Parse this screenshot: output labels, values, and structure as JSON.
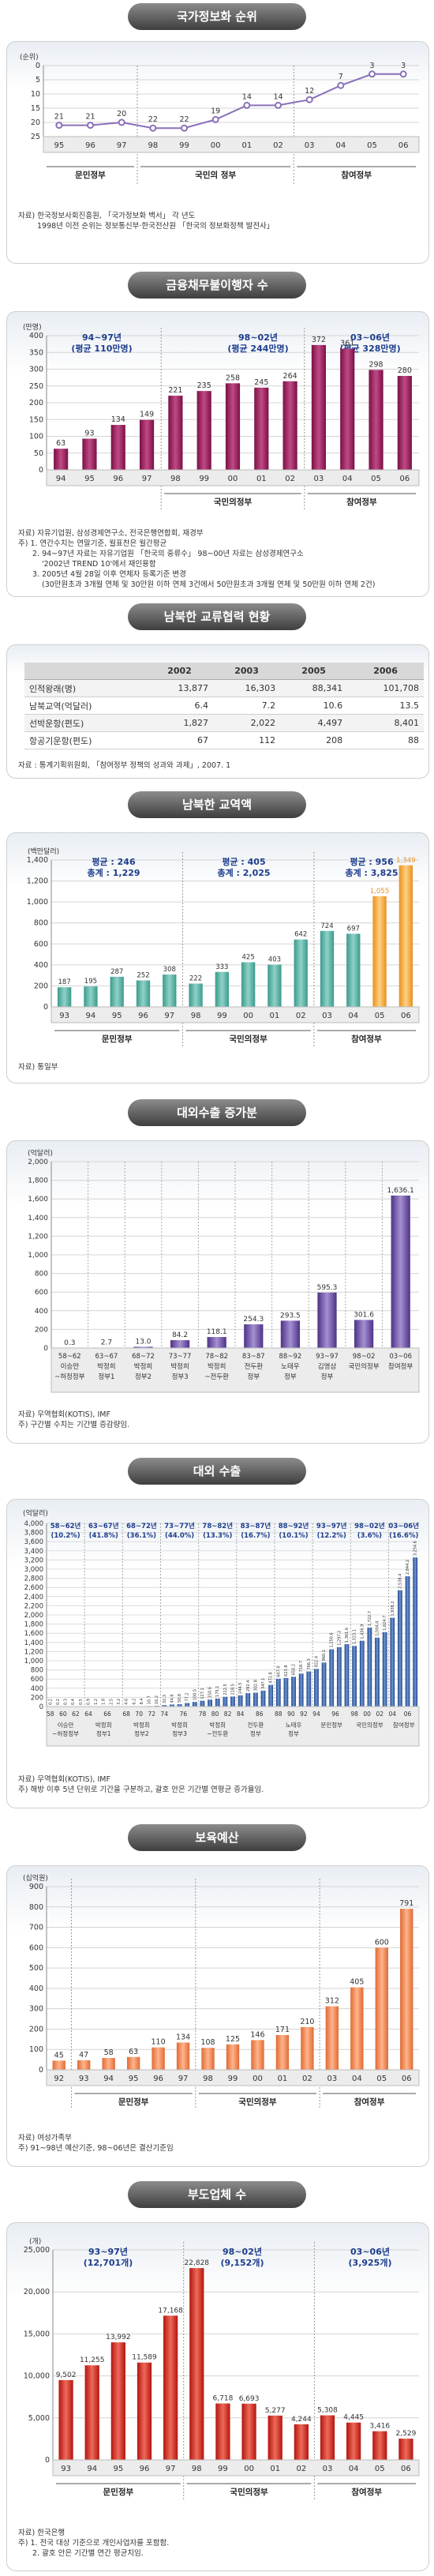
{
  "banners": {
    "s1": "국가정보화 순위",
    "s2": "금융채무불이행자 수",
    "s3": "남북한 교류협력 현황",
    "s4": "남북한 교역액",
    "s5": "대외수출 증가분",
    "s6": "대외 수출",
    "s7": "보육예산",
    "s8": "부도업체 수"
  },
  "colors": {
    "banner": "#555555",
    "panel_border": "#cfcfcf",
    "bar_purple": "#9b1a5c",
    "bar_teal": "#5bb5a8",
    "bar_orange": "#f0a040",
    "bar_violet": "#7a5aa8",
    "bar_blue": "#2c5aa0",
    "bar_salmon": "#f08a58",
    "bar_red": "#d02820",
    "line_violet": "#8a70b8"
  },
  "sources": {
    "s1": [
      "자료) 한국정보사회진흥원, 「국가정보화 백서」 각 년도",
      "1998년 이전 순위는 정보통신부·한국전산원 「한국의 정보화정책 발전사」"
    ],
    "s2": [
      "자료) 자유기업원, 삼성경제연구소, 전국은행연합회, 재경부",
      "주) 1. 연간수치는 연말기준, 월표찬은 월간평균",
      "2. 94~97년 자료는 자유기업원 「한국의 중류수」 98~00년 자료는 삼성경제연구소",
      "'2002년 TREND 10'에서 재인용함",
      "3. 2005년 4월 28일 이후 연체자 등록기준 변경",
      "(30만원초과 3개월 연체 및 30만원 이하 연체 3건에서 50만원초과 3개월 연체 및 50만원 이하 연체 2건)"
    ],
    "s3": [
      "자료 : 통계기획위원회, 「참여정부 정책의 성과와 과제」, 2007. 1"
    ],
    "s4": [
      "자료) 통일부"
    ],
    "s5": [
      "자료) 무역협회(KOTIS), IMF",
      "주) 구간별 수치는 기간별 증감량임."
    ],
    "s6": [
      "자료) 무역협회(KOTIS), IMF",
      "주) 해방 이후 5년 단위로 기간을 구분하고, 괄호 안은 기간별 연평균 증가율임."
    ],
    "s7": [
      "자료) 여성가족부",
      "주) 91~98년 예산기준, 98~06년은 결산기준임"
    ],
    "s8": [
      "자료) 한국은행",
      "주) 1. 전국 대상 기준으로 개인사업자를 포함함.",
      "2. 괄호 안은 기간별 연간 평균치임."
    ]
  },
  "table": {
    "header": [
      "",
      "2002",
      "2003",
      "2005",
      "2006"
    ],
    "rows": [
      [
        "인적왕래(명)",
        "13,877",
        "16,303",
        "88,341",
        "101,708"
      ],
      [
        "남북교역(억달러)",
        "6.4",
        "7.2",
        "10.6",
        "13.5"
      ],
      [
        "선박운항(편도)",
        "1,827",
        "2,022",
        "4,497",
        "8,401"
      ],
      [
        "항공기운항(편도)",
        "67",
        "112",
        "208",
        "88"
      ]
    ]
  },
  "chart_data": [
    {
      "type": "line",
      "title": "국가정보화 순위",
      "ylabel": "(순위)",
      "ylim": [
        25,
        0
      ],
      "yticks": [
        0,
        5,
        10,
        15,
        20,
        25
      ],
      "categories": [
        "95",
        "96",
        "97",
        "98",
        "99",
        "00",
        "01",
        "02",
        "03",
        "04",
        "05",
        "06"
      ],
      "values": [
        21,
        21,
        20,
        22,
        22,
        19,
        14,
        14,
        12,
        7,
        3,
        3
      ],
      "groups": [
        {
          "label": "문민정부",
          "span": [
            0,
            2
          ]
        },
        {
          "label": "국민의 정부",
          "span": [
            3,
            7
          ]
        },
        {
          "label": "참여정부",
          "span": [
            8,
            11
          ]
        }
      ],
      "grid": true
    },
    {
      "type": "bar",
      "title": "금융채무불이행자 수",
      "ylabel": "(만명)",
      "ylim": [
        0,
        400
      ],
      "yticks": [
        0,
        50,
        100,
        150,
        200,
        250,
        300,
        350,
        400
      ],
      "categories": [
        "94",
        "95",
        "96",
        "97",
        "98",
        "99",
        "00",
        "01",
        "02",
        "03",
        "04",
        "05",
        "06"
      ],
      "values": [
        63,
        93,
        134,
        149,
        221,
        235,
        258,
        245,
        264,
        372,
        361,
        298,
        280
      ],
      "groups": [
        {
          "label": "국민의정부",
          "span": [
            4,
            8
          ]
        },
        {
          "label": "참여정부",
          "span": [
            9,
            12
          ]
        }
      ],
      "annotations": [
        {
          "text": "94~97년",
          "sub": "(평균 110만명)"
        },
        {
          "text": "98~02년",
          "sub": "(평균 244만명)"
        },
        {
          "text": "03~06년",
          "sub": "(평균 328만명)"
        }
      ],
      "grid": true
    },
    {
      "type": "bar",
      "title": "남북한 교역액",
      "ylabel": "(백만달러)",
      "ylim": [
        0,
        1400
      ],
      "yticks": [
        0,
        200,
        400,
        600,
        800,
        1000,
        1200,
        1400
      ],
      "categories": [
        "93",
        "94",
        "95",
        "96",
        "97",
        "98",
        "99",
        "00",
        "01",
        "02",
        "03",
        "04",
        "05",
        "06"
      ],
      "values": [
        187,
        195,
        287,
        252,
        308,
        222,
        333,
        425,
        403,
        642,
        724,
        697,
        1055,
        1349
      ],
      "groups": [
        {
          "label": "문민정부",
          "span": [
            0,
            4
          ]
        },
        {
          "label": "국민의정부",
          "span": [
            5,
            9
          ]
        },
        {
          "label": "참여정부",
          "span": [
            10,
            13
          ]
        }
      ],
      "annotations": [
        {
          "text": "평균 : 246",
          "sub": "총계 : 1,229"
        },
        {
          "text": "평균 : 405",
          "sub": "총계 : 2,025"
        },
        {
          "text": "평균 : 956",
          "sub": "총계 : 3,825"
        }
      ],
      "grid": true
    },
    {
      "type": "bar",
      "title": "대외수출 증가분",
      "ylabel": "(억달러)",
      "ylim": [
        0,
        2000
      ],
      "yticks": [
        0,
        200,
        400,
        600,
        800,
        1000,
        1200,
        1400,
        1600,
        1800,
        2000
      ],
      "categories": [
        [
          "58~62",
          "이승만",
          "~허정정부"
        ],
        [
          "63~67",
          "박정희",
          "정부1"
        ],
        [
          "68~72",
          "박정희",
          "정부2"
        ],
        [
          "73~77",
          "박정희",
          "정부3"
        ],
        [
          "78~82",
          "박정희",
          "~전두환"
        ],
        [
          "83~87",
          "전두환",
          "정부"
        ],
        [
          "88~92",
          "노태우",
          "정부"
        ],
        [
          "93~97",
          "김영삼",
          "정부"
        ],
        [
          "98~02",
          "국민의정부"
        ],
        [
          "03~06",
          "참여정부"
        ]
      ],
      "values": [
        0.3,
        2.7,
        13.0,
        84.2,
        118.1,
        254.3,
        293.5,
        595.3,
        301.6,
        1636.1
      ],
      "value_labels": [
        "0.3",
        "2.7",
        "13.0",
        "84.2",
        "118.1",
        "254.3",
        "293.5",
        "595.3",
        "301.6",
        "1,636.1"
      ],
      "grid": true
    },
    {
      "type": "bar",
      "title": "대외 수출",
      "ylabel": "(억달러)",
      "ylim": [
        0,
        4000
      ],
      "yticks": [
        0,
        200,
        400,
        600,
        800,
        1000,
        1200,
        1400,
        1600,
        1800,
        2000,
        2200,
        2400,
        2600,
        2800,
        3000,
        3200,
        3400,
        3600,
        3800,
        4000
      ],
      "periods": [
        {
          "label": "58~62년",
          "rate": "(10.2%)",
          "group": [
            "이승만",
            "~허정정부"
          ],
          "years": [
            "58",
            "60",
            "62"
          ]
        },
        {
          "label": "63~67년",
          "rate": "(41.8%)",
          "group": [
            "박정희",
            "정부1"
          ],
          "years": [
            "64",
            "66"
          ]
        },
        {
          "label": "68~72년",
          "rate": "(36.1%)",
          "group": [
            "박정희",
            "정부2"
          ],
          "years": [
            "68",
            "70",
            "72"
          ]
        },
        {
          "label": "73~77년",
          "rate": "(44.0%)",
          "group": [
            "박정희",
            "정부3"
          ],
          "years": [
            "74",
            "76"
          ]
        },
        {
          "label": "78~82년",
          "rate": "(13.3%)",
          "group": [
            "박정희",
            "~전두환"
          ],
          "years": [
            "78",
            "80",
            "82"
          ]
        },
        {
          "label": "83~87년",
          "rate": "(16.7%)",
          "group": [
            "전두환",
            "정부"
          ],
          "years": [
            "84",
            "86"
          ]
        },
        {
          "label": "88~92년",
          "rate": "(10.1%)",
          "group": [
            "노태우",
            "정부"
          ],
          "years": [
            "88",
            "90",
            "92"
          ]
        },
        {
          "label": "93~97년",
          "rate": "(12.2%)",
          "group": [
            "문민정부"
          ],
          "years": [
            "94",
            "96"
          ]
        },
        {
          "label": "98~02년",
          "rate": "(3.6%)",
          "group": [
            "국민의정부"
          ],
          "years": [
            "98",
            "00",
            "02"
          ]
        },
        {
          "label": "03~06년",
          "rate": "(16.6%)",
          "group": [
            "참여정부"
          ],
          "years": [
            "04",
            "06"
          ]
        }
      ],
      "x": [
        "58",
        "59",
        "60",
        "61",
        "62",
        "63",
        "64",
        "65",
        "66",
        "67",
        "68",
        "69",
        "70",
        "71",
        "72",
        "73",
        "74",
        "75",
        "76",
        "77",
        "78",
        "79",
        "80",
        "81",
        "82",
        "83",
        "84",
        "85",
        "86",
        "87",
        "88",
        "89",
        "90",
        "91",
        "92",
        "93",
        "94",
        "95",
        "96",
        "97",
        "98",
        "99",
        "00",
        "01",
        "02",
        "03",
        "04",
        "05",
        "06"
      ],
      "values": [
        0.2,
        0.2,
        0.3,
        0.4,
        0.5,
        0.9,
        1.2,
        1.8,
        2.5,
        3.2,
        4.6,
        6.2,
        8.4,
        10.7,
        16.2,
        32.3,
        44.6,
        50.8,
        77.2,
        100.5,
        127.1,
        150.6,
        175.1,
        212.5,
        218.5,
        244.5,
        292.4,
        302.8,
        347.1,
        472.8,
        607.0,
        623.8,
        650.2,
        718.7,
        766.3,
        822.4,
        960.1,
        1250.6,
        1297.2,
        1361.6,
        1323.1,
        1436.9,
        1722.7,
        1504.4,
        1624.7,
        1938.2,
        2538.4,
        2844.2,
        3254.6
      ],
      "value_labels": [
        "0.2",
        "0.2",
        "0.3",
        "0.4",
        "0.5",
        "0.9",
        "1.2",
        "1.8",
        "2.5",
        "3.2",
        "4.6",
        "6.2",
        "8.4",
        "10.7",
        "16.2",
        "32.3",
        "44.6",
        "50.8",
        "77.2",
        "100.5",
        "127.1",
        "150.6",
        "175.1",
        "212.5",
        "218.5",
        "244.5",
        "292.4",
        "302.8",
        "347.1",
        "472.8",
        "607.0",
        "623.8",
        "650.2",
        "718.7",
        "766.3",
        "822.4",
        "960.1",
        "1,250.6",
        "1,297.2",
        "1,361.6",
        "1,323.1",
        "1,436.9",
        "1,722.7",
        "1,504.4",
        "1,624.7",
        "1,938.2",
        "2,538.4",
        "2,844.2",
        "3,254.6"
      ],
      "grid": true
    },
    {
      "type": "bar",
      "title": "보육예산",
      "ylabel": "(십억원)",
      "ylim": [
        0,
        900
      ],
      "yticks": [
        0,
        100,
        200,
        300,
        400,
        500,
        600,
        700,
        800,
        900
      ],
      "categories": [
        "92",
        "93",
        "94",
        "95",
        "96",
        "97",
        "98",
        "99",
        "00",
        "01",
        "02",
        "03",
        "04",
        "05",
        "06"
      ],
      "values": [
        45,
        47,
        58,
        63,
        110,
        134,
        108,
        125,
        146,
        171,
        210,
        312,
        405,
        600,
        791
      ],
      "groups": [
        {
          "label": "문민정부",
          "span": [
            1,
            5
          ]
        },
        {
          "label": "국민의정부",
          "span": [
            6,
            10
          ]
        },
        {
          "label": "참여정부",
          "span": [
            11,
            14
          ]
        }
      ],
      "grid": true
    },
    {
      "type": "bar",
      "title": "부도업체 수",
      "ylabel": "(개)",
      "ylim": [
        0,
        25000
      ],
      "yticks": [
        0,
        5000,
        10000,
        15000,
        20000,
        25000
      ],
      "ytick_labels": [
        "0",
        "5,000",
        "10,000",
        "15,000",
        "20,000",
        "25,000"
      ],
      "categories": [
        "93",
        "94",
        "95",
        "96",
        "97",
        "98",
        "99",
        "00",
        "01",
        "02",
        "03",
        "04",
        "05",
        "06"
      ],
      "values": [
        9502,
        11255,
        13992,
        11589,
        17168,
        22828,
        6718,
        6693,
        5277,
        4244,
        5308,
        4445,
        3416,
        2529
      ],
      "value_labels": [
        "9,502",
        "11,255",
        "13,992",
        "11,589",
        "17,168",
        "22,828",
        "6,718",
        "6,693",
        "5,277",
        "4,244",
        "5,308",
        "4,445",
        "3,416",
        "2,529"
      ],
      "groups": [
        {
          "label": "문민정부",
          "span": [
            0,
            4
          ]
        },
        {
          "label": "국민의정부",
          "span": [
            5,
            9
          ]
        },
        {
          "label": "참여정부",
          "span": [
            10,
            13
          ]
        }
      ],
      "annotations": [
        {
          "text": "93~97년",
          "sub": "(12,701개)"
        },
        {
          "text": "98~02년",
          "sub": "(9,152개)"
        },
        {
          "text": "03~06년",
          "sub": "(3,925개)"
        }
      ],
      "grid": true
    }
  ]
}
